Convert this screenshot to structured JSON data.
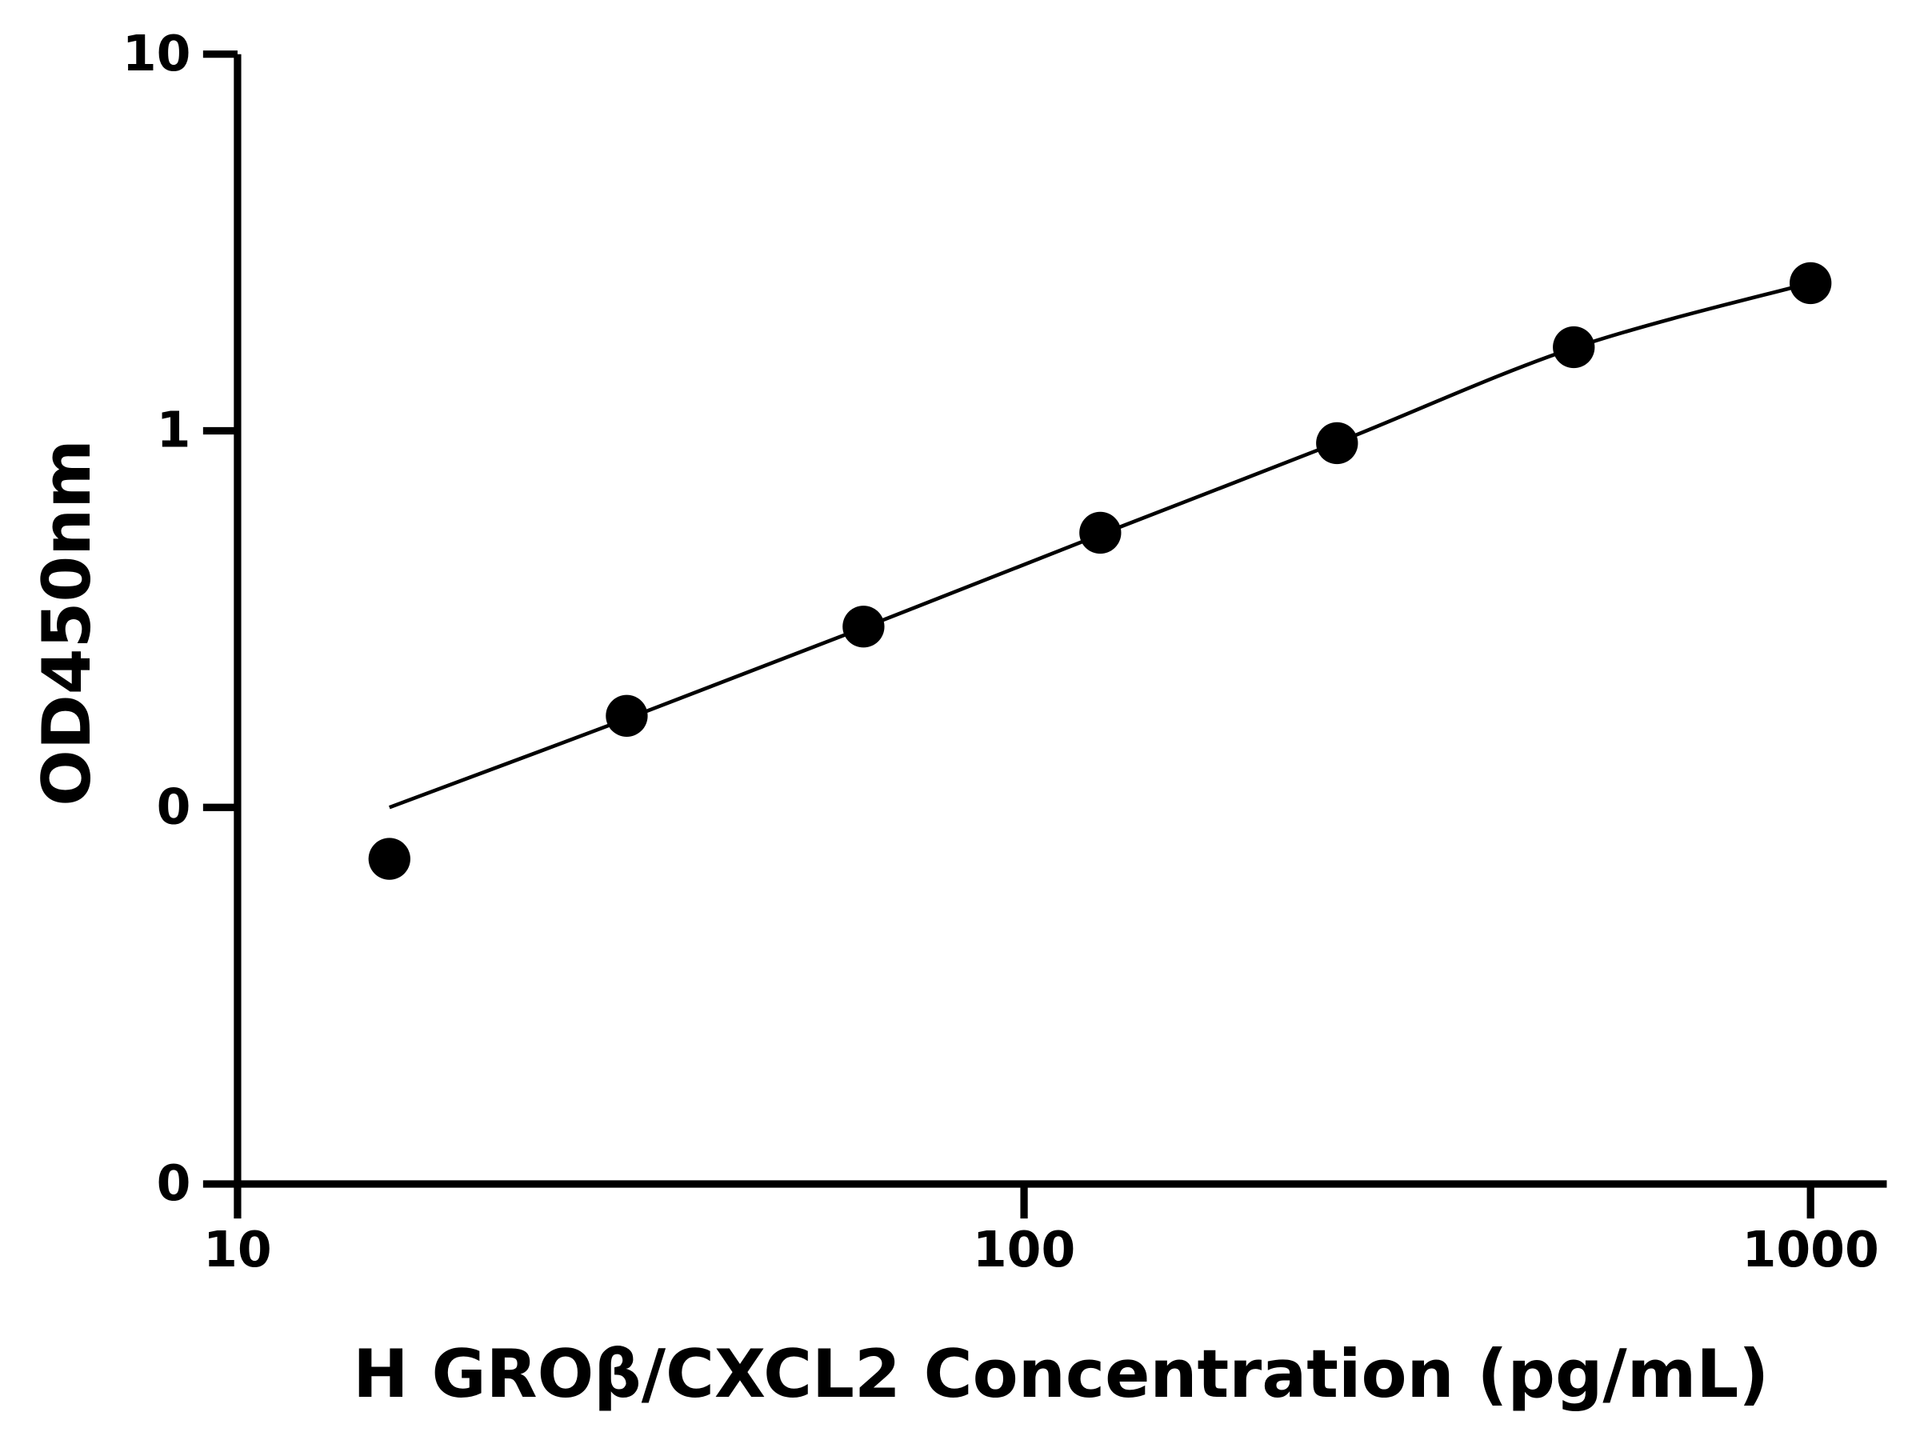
{
  "chart_data": {
    "type": "scatter",
    "x_label": "H GROβ/CXCL2 Concentration (pg/mL)",
    "y_label": "OD450nm",
    "x_scale": "log",
    "y_scale": "log",
    "xlim": [
      10,
      1250
    ],
    "ylim": [
      0.01,
      10
    ],
    "xticks": [
      10,
      100,
      1000
    ],
    "yticks": [
      {
        "value": 0.01,
        "label": "0"
      },
      {
        "value": 0.1,
        "label": "0"
      },
      1,
      10
    ],
    "x": [
      15.6,
      31.25,
      62.5,
      125,
      250,
      500,
      1000
    ],
    "series": [
      {
        "color": "#000000",
        "marker": "circle",
        "values": [
          0.073,
          0.175,
          0.302,
          0.536,
          0.927,
          1.667,
          2.466
        ]
      },
      {
        "color": "#000000",
        "style": "line",
        "values": [
          0.1,
          0.172,
          0.3,
          0.53,
          0.93,
          1.66,
          2.47
        ]
      }
    ]
  }
}
